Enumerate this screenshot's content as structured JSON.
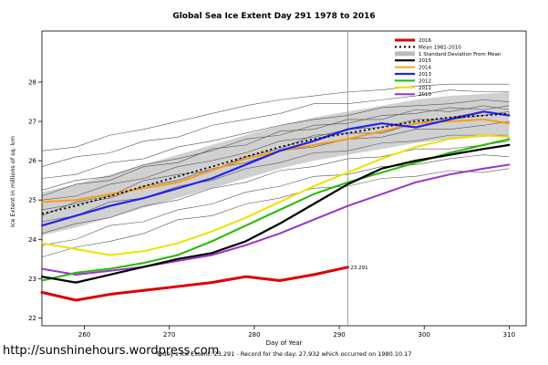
{
  "chart_data": {
    "type": "line",
    "title": "Global Sea Ice Extent Day 291 1978 to 2016",
    "xlabel": "Day of Year",
    "ylabel": "Ice Extent in millions of sq. km",
    "xlim": [
      255,
      312
    ],
    "ylim": [
      21.8,
      29.3
    ],
    "xticks": [
      260,
      270,
      280,
      290,
      300,
      310
    ],
    "yticks": [
      22,
      23,
      24,
      25,
      26,
      27,
      28
    ],
    "grid": false,
    "legend_position": "top-right",
    "marker_day": 291,
    "annotation": {
      "text": "23.291",
      "x": 291,
      "y": 23.29,
      "color": "#cc0000"
    },
    "x": [
      255,
      259,
      263,
      267,
      271,
      275,
      279,
      283,
      287,
      291,
      295,
      299,
      303,
      307,
      310
    ],
    "mean": {
      "name": "Mean 1981-2010",
      "color": "#000000",
      "dash": "2,3",
      "width": 1.8,
      "values": [
        24.65,
        24.85,
        25.1,
        25.35,
        25.6,
        25.85,
        26.1,
        26.35,
        26.55,
        26.7,
        26.85,
        27.0,
        27.1,
        27.15,
        27.2
      ]
    },
    "band": {
      "name": "1 Standard Deviation From Mean",
      "color": "#c8c8c8",
      "sd": 0.55
    },
    "series": [
      {
        "name": "2010",
        "color": "#9933cc",
        "width": 2,
        "values": [
          23.25,
          23.1,
          23.2,
          23.3,
          23.45,
          23.6,
          23.85,
          24.15,
          24.5,
          24.85,
          25.15,
          25.45,
          25.65,
          25.8,
          25.9
        ]
      },
      {
        "name": "2011",
        "color": "#f0e000",
        "width": 2,
        "values": [
          23.9,
          23.75,
          23.6,
          23.7,
          23.9,
          24.2,
          24.55,
          24.95,
          25.35,
          25.7,
          26.05,
          26.35,
          26.55,
          26.65,
          26.6
        ]
      },
      {
        "name": "2012",
        "color": "#22bb00",
        "width": 2,
        "values": [
          22.95,
          23.15,
          23.25,
          23.4,
          23.6,
          23.95,
          24.35,
          24.75,
          25.15,
          25.45,
          25.7,
          25.95,
          26.2,
          26.4,
          26.55
        ]
      },
      {
        "name": "2014",
        "color": "#ff9900",
        "width": 1.8,
        "values": [
          24.95,
          25.0,
          25.15,
          25.3,
          25.45,
          25.75,
          26.05,
          26.25,
          26.4,
          26.55,
          26.75,
          26.95,
          27.0,
          27.05,
          26.95
        ]
      },
      {
        "name": "2013",
        "color": "#2222ee",
        "width": 2.2,
        "values": [
          24.35,
          24.6,
          24.85,
          25.05,
          25.3,
          25.55,
          25.9,
          26.25,
          26.5,
          26.8,
          26.95,
          26.85,
          27.05,
          27.25,
          27.15
        ]
      },
      {
        "name": "2015",
        "color": "#000000",
        "width": 2.2,
        "values": [
          23.05,
          22.9,
          23.1,
          23.3,
          23.5,
          23.65,
          23.95,
          24.4,
          24.9,
          25.4,
          25.8,
          26.0,
          26.15,
          26.3,
          26.4
        ]
      },
      {
        "name": "2016",
        "color": "#dd0000",
        "width": 3,
        "x": [
          255,
          259,
          263,
          267,
          271,
          275,
          279,
          283,
          287,
          291
        ],
        "values": [
          22.65,
          22.45,
          22.6,
          22.7,
          22.8,
          22.9,
          23.05,
          22.95,
          23.1,
          23.29
        ]
      }
    ],
    "background_color": "#555555",
    "background_offsets": [
      [
        1.6,
        1.5,
        1.55,
        1.45,
        1.4,
        1.35,
        1.3,
        1.2,
        1.1,
        1.05,
        0.95,
        0.9,
        0.85,
        0.8,
        0.75
      ],
      [
        1.2,
        1.25,
        1.1,
        1.15,
        1.0,
        1.05,
        0.95,
        0.85,
        0.9,
        0.75,
        0.7,
        0.65,
        0.7,
        0.6,
        0.55
      ],
      [
        0.9,
        0.8,
        0.85,
        0.7,
        0.75,
        0.65,
        0.6,
        0.55,
        0.5,
        0.45,
        0.5,
        0.4,
        0.35,
        0.4,
        0.3
      ],
      [
        0.6,
        0.65,
        0.5,
        0.55,
        0.45,
        0.4,
        0.45,
        0.3,
        0.35,
        0.25,
        0.3,
        0.2,
        0.25,
        0.15,
        0.2
      ],
      [
        0.35,
        0.25,
        0.3,
        0.2,
        0.25,
        0.15,
        0.1,
        0.15,
        0.05,
        0.1,
        0.0,
        0.05,
        -0.05,
        0.0,
        0.05
      ],
      [
        0.1,
        0.05,
        -0.05,
        0.0,
        -0.1,
        -0.05,
        -0.15,
        -0.1,
        -0.2,
        -0.15,
        -0.25,
        -0.2,
        -0.3,
        -0.25,
        -0.2
      ],
      [
        -0.2,
        -0.25,
        -0.15,
        -0.3,
        -0.25,
        -0.35,
        -0.3,
        -0.4,
        -0.35,
        -0.45,
        -0.4,
        -0.5,
        -0.45,
        -0.5,
        -0.55
      ],
      [
        -0.5,
        -0.45,
        -0.55,
        -0.5,
        -0.6,
        -0.55,
        -0.65,
        -0.6,
        -0.7,
        -0.65,
        -0.75,
        -0.7,
        -0.8,
        -0.75,
        -0.7
      ],
      [
        -0.8,
        -0.85,
        -0.75,
        -0.9,
        -0.85,
        -0.95,
        -0.9,
        -1.0,
        -0.95,
        -1.05,
        -1.0,
        -1.1,
        -1.05,
        -1.0,
        -1.1
      ],
      [
        -1.1,
        -1.05,
        -1.15,
        -1.2,
        -1.1,
        -1.25,
        -1.2,
        -1.3,
        -1.25,
        -1.35,
        -1.3,
        -1.4,
        -1.35,
        -1.45,
        -1.4
      ],
      [
        0.45,
        0.55,
        0.4,
        0.5,
        0.35,
        0.45,
        0.3,
        0.4,
        0.25,
        0.35,
        0.2,
        0.3,
        0.15,
        0.25,
        0.1
      ],
      [
        -0.05,
        0.1,
        0.0,
        0.15,
        0.05,
        -0.1,
        0.0,
        -0.05,
        0.1,
        0.0,
        -0.15,
        -0.05,
        0.0,
        0.1,
        -0.05
      ]
    ],
    "legend": {
      "items": [
        {
          "label": "2016",
          "color": "#dd0000",
          "width": 3
        },
        {
          "label": "Mean 1981-2010",
          "color": "#000000",
          "width": 2,
          "dash": "2,3"
        },
        {
          "label": "1 Standard Deviation From Mean",
          "color": "#bbbbbb",
          "band": true
        },
        {
          "label": "2015",
          "color": "#000000",
          "width": 2.2
        },
        {
          "label": "2014",
          "color": "#ff9900",
          "width": 1.8
        },
        {
          "label": "2013",
          "color": "#2222ee",
          "width": 2.2
        },
        {
          "label": "2012",
          "color": "#22bb00",
          "width": 2
        },
        {
          "label": "2011",
          "color": "#f0e000",
          "width": 2
        },
        {
          "label": "2010",
          "color": "#9933cc",
          "width": 2
        }
      ]
    },
    "footer": {
      "caption": "Today's Ice Extent: 23,291 - Record for the day: 27,932 which occurred on 1980.10.17",
      "url": "http://sunshinehours.wordpress.com"
    }
  }
}
